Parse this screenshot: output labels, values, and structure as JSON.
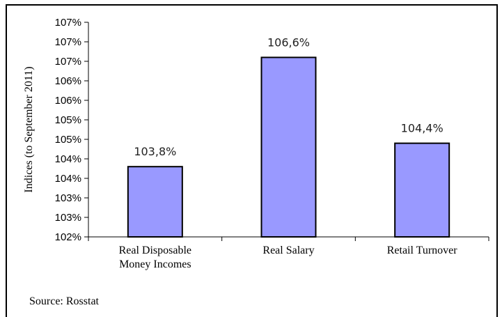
{
  "chart_data": {
    "type": "bar",
    "categories": [
      [
        "Real Disposable",
        "Money Incomes"
      ],
      [
        "Real Salary"
      ],
      [
        "Retail Turnover"
      ]
    ],
    "values": [
      103.8,
      106.6,
      104.4
    ],
    "data_labels": [
      "103,8%",
      "106,6%",
      "104,4%"
    ],
    "ylabel": "Indices (to September 2011)",
    "ylim": [
      102,
      107.5
    ],
    "ytick_values": [
      102,
      102.5,
      103,
      103.5,
      104,
      104.5,
      105,
      105.5,
      106,
      106.5,
      107,
      107.5
    ],
    "ytick_labels": [
      "102%",
      "103%",
      "103%",
      "104%",
      "104%",
      "105%",
      "105%",
      "106%",
      "106%",
      "107%",
      "107%",
      "107%"
    ],
    "bar_color": "#9999ff",
    "bar_edge_color": "#000000",
    "grid": false,
    "legend": "none"
  },
  "source": "Source: Rosstat",
  "top_cut_text": "Source: Rosstat"
}
